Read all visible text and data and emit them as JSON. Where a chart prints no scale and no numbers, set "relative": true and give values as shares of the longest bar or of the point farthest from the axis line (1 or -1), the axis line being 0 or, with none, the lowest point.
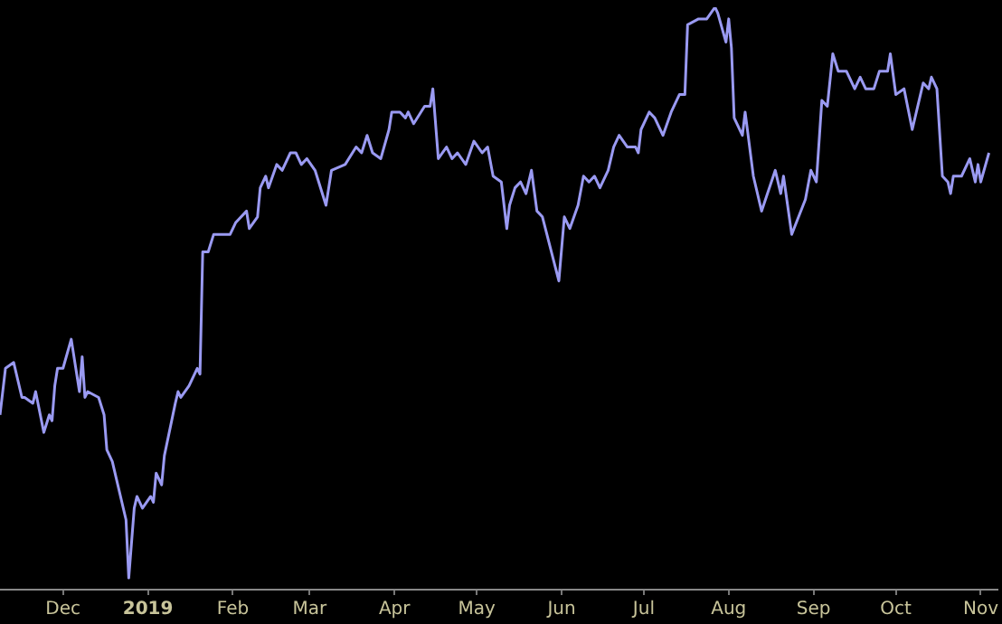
{
  "chart_data": {
    "type": "line",
    "relative": true,
    "legend": false,
    "grid": false,
    "marker": "none",
    "line_style": "solid",
    "xlim": [
      "2018-11-08",
      "2019-11-07"
    ],
    "xticks": [
      {
        "value": "2018-12-01",
        "label": "Dec"
      },
      {
        "value": "2019-01-01",
        "label": "2019"
      },
      {
        "value": "2019-02-01",
        "label": "Feb"
      },
      {
        "value": "2019-03-01",
        "label": "Mar"
      },
      {
        "value": "2019-04-01",
        "label": "Apr"
      },
      {
        "value": "2019-05-01",
        "label": "May"
      },
      {
        "value": "2019-06-01",
        "label": "Jun"
      },
      {
        "value": "2019-07-01",
        "label": "Jul"
      },
      {
        "value": "2019-08-01",
        "label": "Aug"
      },
      {
        "value": "2019-09-01",
        "label": "Sep"
      },
      {
        "value": "2019-10-01",
        "label": "Oct"
      },
      {
        "value": "2019-11-01",
        "label": "Nov"
      }
    ],
    "x": [
      "2018-11-08",
      "2018-11-10",
      "2018-11-13",
      "2018-11-16",
      "2018-11-17",
      "2018-11-20",
      "2018-11-21",
      "2018-11-24",
      "2018-11-26",
      "2018-11-27",
      "2018-11-28",
      "2018-11-29",
      "2018-12-01",
      "2018-12-04",
      "2018-12-07",
      "2018-12-08",
      "2018-12-09",
      "2018-12-10",
      "2018-12-14",
      "2018-12-16",
      "2018-12-17",
      "2018-12-19",
      "2018-12-21",
      "2018-12-24",
      "2018-12-25",
      "2018-12-27",
      "2018-12-28",
      "2018-12-30",
      "2019-01-02",
      "2019-01-03",
      "2019-01-04",
      "2019-01-06",
      "2019-01-07",
      "2019-01-11",
      "2019-01-12",
      "2019-01-13",
      "2019-01-16",
      "2019-01-19",
      "2019-01-20",
      "2019-01-21",
      "2019-01-23",
      "2019-01-25",
      "2019-01-31",
      "2019-02-02",
      "2019-02-06",
      "2019-02-07",
      "2019-02-10",
      "2019-02-11",
      "2019-02-13",
      "2019-02-14",
      "2019-02-17",
      "2019-02-19",
      "2019-02-22",
      "2019-02-24",
      "2019-02-26",
      "2019-02-28",
      "2019-03-03",
      "2019-03-07",
      "2019-03-09",
      "2019-03-14",
      "2019-03-18",
      "2019-03-20",
      "2019-03-22",
      "2019-03-24",
      "2019-03-27",
      "2019-03-30",
      "2019-03-31",
      "2019-04-03",
      "2019-04-05",
      "2019-04-06",
      "2019-04-08",
      "2019-04-12",
      "2019-04-14",
      "2019-04-15",
      "2019-04-17",
      "2019-04-20",
      "2019-04-22",
      "2019-04-24",
      "2019-04-27",
      "2019-04-30",
      "2019-05-03",
      "2019-05-05",
      "2019-05-07",
      "2019-05-10",
      "2019-05-12",
      "2019-05-13",
      "2019-05-15",
      "2019-05-17",
      "2019-05-19",
      "2019-05-21",
      "2019-05-23",
      "2019-05-25",
      "2019-05-31",
      "2019-06-02",
      "2019-06-04",
      "2019-06-07",
      "2019-06-09",
      "2019-06-11",
      "2019-06-13",
      "2019-06-15",
      "2019-06-18",
      "2019-06-20",
      "2019-06-22",
      "2019-06-25",
      "2019-06-28",
      "2019-06-29",
      "2019-06-30",
      "2019-07-03",
      "2019-07-05",
      "2019-07-08",
      "2019-07-11",
      "2019-07-14",
      "2019-07-16",
      "2019-07-17",
      "2019-07-21",
      "2019-07-23",
      "2019-07-24",
      "2019-07-27",
      "2019-07-28",
      "2019-07-31",
      "2019-08-01",
      "2019-08-02",
      "2019-08-03",
      "2019-08-06",
      "2019-08-07",
      "2019-08-10",
      "2019-08-13",
      "2019-08-18",
      "2019-08-20",
      "2019-08-21",
      "2019-08-24",
      "2019-08-29",
      "2019-08-31",
      "2019-09-02",
      "2019-09-04",
      "2019-09-06",
      "2019-09-08",
      "2019-09-10",
      "2019-09-13",
      "2019-09-16",
      "2019-09-18",
      "2019-09-20",
      "2019-09-23",
      "2019-09-25",
      "2019-09-28",
      "2019-09-29",
      "2019-10-01",
      "2019-10-04",
      "2019-10-07",
      "2019-10-11",
      "2019-10-13",
      "2019-10-14",
      "2019-10-16",
      "2019-10-18",
      "2019-10-20",
      "2019-10-21",
      "2019-10-22",
      "2019-10-25",
      "2019-10-28",
      "2019-10-30",
      "2019-10-31",
      "2019-11-01",
      "2019-11-04"
    ],
    "series": [
      {
        "color": "#9a9af2",
        "values": [
          0.3,
          0.38,
          0.39,
          0.33,
          0.33,
          0.32,
          0.34,
          0.27,
          0.3,
          0.29,
          0.35,
          0.38,
          0.38,
          0.43,
          0.34,
          0.4,
          0.33,
          0.34,
          0.33,
          0.3,
          0.24,
          0.22,
          0.18,
          0.12,
          0.02,
          0.14,
          0.16,
          0.14,
          0.16,
          0.15,
          0.2,
          0.18,
          0.23,
          0.32,
          0.34,
          0.33,
          0.35,
          0.38,
          0.37,
          0.58,
          0.58,
          0.61,
          0.61,
          0.63,
          0.65,
          0.62,
          0.64,
          0.69,
          0.71,
          0.69,
          0.73,
          0.72,
          0.75,
          0.75,
          0.73,
          0.74,
          0.72,
          0.66,
          0.72,
          0.73,
          0.76,
          0.75,
          0.78,
          0.75,
          0.74,
          0.79,
          0.82,
          0.82,
          0.81,
          0.82,
          0.8,
          0.83,
          0.83,
          0.86,
          0.74,
          0.76,
          0.74,
          0.75,
          0.73,
          0.77,
          0.75,
          0.76,
          0.71,
          0.7,
          0.62,
          0.66,
          0.69,
          0.7,
          0.68,
          0.72,
          0.65,
          0.64,
          0.53,
          0.64,
          0.62,
          0.66,
          0.71,
          0.7,
          0.71,
          0.69,
          0.72,
          0.76,
          0.78,
          0.76,
          0.76,
          0.75,
          0.79,
          0.82,
          0.81,
          0.78,
          0.82,
          0.85,
          0.85,
          0.97,
          0.98,
          0.98,
          0.98,
          1.0,
          0.99,
          0.94,
          0.98,
          0.93,
          0.81,
          0.78,
          0.82,
          0.71,
          0.65,
          0.72,
          0.68,
          0.71,
          0.61,
          0.67,
          0.72,
          0.7,
          0.84,
          0.83,
          0.92,
          0.89,
          0.89,
          0.86,
          0.88,
          0.86,
          0.86,
          0.89,
          0.89,
          0.92,
          0.85,
          0.86,
          0.79,
          0.87,
          0.86,
          0.88,
          0.86,
          0.71,
          0.7,
          0.68,
          0.71,
          0.71,
          0.74,
          0.7,
          0.73,
          0.7,
          0.75
        ]
      }
    ]
  }
}
